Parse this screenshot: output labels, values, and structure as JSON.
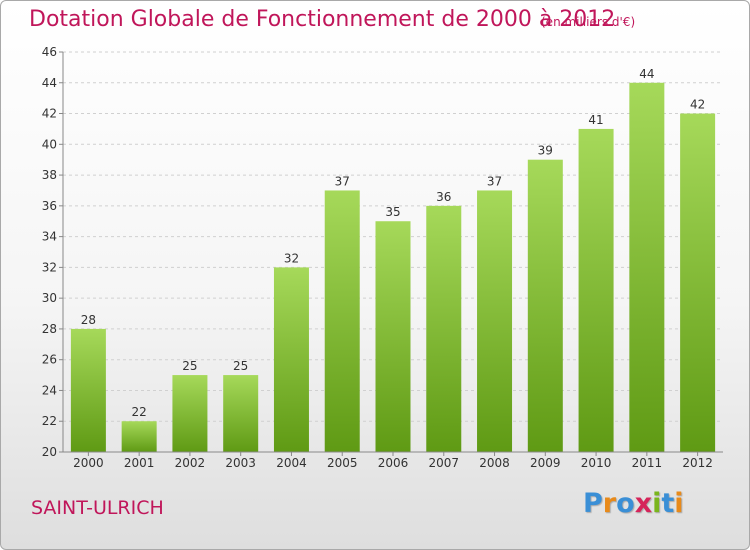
{
  "header": {
    "title": "Dotation Globale de Fonctionnement de 2000 à 2012",
    "unit": "(en milliers d'€)"
  },
  "footer": {
    "commune": "SAINT-ULRICH",
    "logo": {
      "text": "Proxiti",
      "letter_colors": [
        "#3a8fd6",
        "#e88a1a",
        "#3a8fd6",
        "#d6245a",
        "#7ab51d",
        "#3a8fd6",
        "#e88a1a"
      ]
    }
  },
  "colors": {
    "bar_top": "#a6d95a",
    "bar_bottom": "#5f9a14",
    "title": "#c0165a",
    "grid": "#d0d0d0",
    "axis": "#888888"
  },
  "chart_data": {
    "type": "bar",
    "categories": [
      "2000",
      "2001",
      "2002",
      "2003",
      "2004",
      "2005",
      "2006",
      "2007",
      "2008",
      "2009",
      "2010",
      "2011",
      "2012"
    ],
    "values": [
      28,
      22,
      25,
      25,
      32,
      37,
      35,
      36,
      37,
      39,
      41,
      44,
      42
    ],
    "data_labels": [
      "28",
      "22",
      "25",
      "25",
      "32",
      "37",
      "35",
      "36",
      "37",
      "39",
      "41",
      "44",
      "42"
    ],
    "yticks": [
      20,
      22,
      24,
      26,
      28,
      30,
      32,
      34,
      36,
      38,
      40,
      42,
      44,
      46
    ],
    "ylim": [
      20,
      46
    ],
    "grid": true,
    "legend": "none"
  }
}
